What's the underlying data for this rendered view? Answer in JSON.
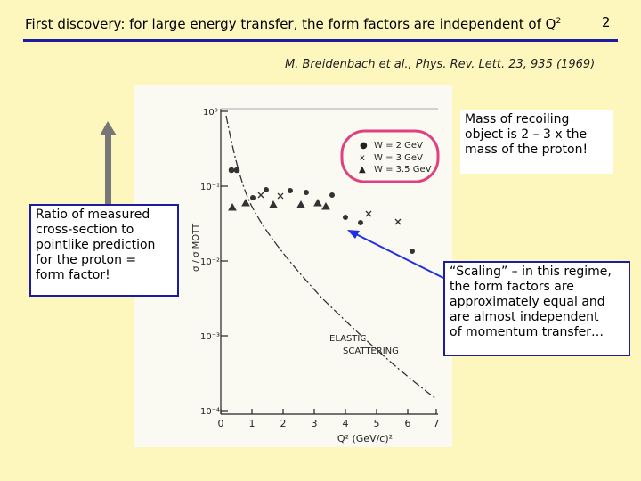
{
  "slide": {
    "title_main": "First discovery:  for large energy transfer, the form factors are independent of Q",
    "title_sup": "2",
    "page_number": "2",
    "citation": "M. Breidenbach et al., Phys. Rev. Lett. 23, 935 (1969)"
  },
  "notes": {
    "left": [
      "Ratio of measured",
      "cross-section to",
      "pointlike prediction",
      "for the proton =",
      "form factor!"
    ],
    "mass": [
      "Mass of recoiling",
      "object is 2 – 3 x the",
      "mass of the proton!"
    ],
    "scaling": [
      "“Scaling” – in this regime,",
      "the form factors are",
      "approximately equal and",
      "are almost independent",
      "of momentum transfer…"
    ]
  },
  "plot": {
    "y_tick_labels": [
      "10⁰",
      "10⁻¹",
      "10⁻²",
      "10⁻³",
      "10⁻⁴"
    ],
    "x_tick_labels": [
      "0",
      "1",
      "2",
      "3",
      "4",
      "5",
      "6",
      "7"
    ],
    "y_axis_label": "σ / σ MOTT",
    "x_axis_label": "Q² (GeV/c)²",
    "curve_label_1": "ELASTIC",
    "curve_label_2": "SCATTERING",
    "legend": [
      {
        "marker": "●",
        "label": "W = 2 GeV"
      },
      {
        "marker": "x",
        "label": "W = 3 GeV"
      },
      {
        "marker": "▲",
        "label": "W = 3.5 GeV"
      }
    ]
  },
  "colors": {
    "background": "#fdf7be",
    "title_rule": "#1c1ca0",
    "legend_circle": "#e0407f",
    "arrow": "#1e2ee0",
    "up_arrow": "#777777"
  }
}
